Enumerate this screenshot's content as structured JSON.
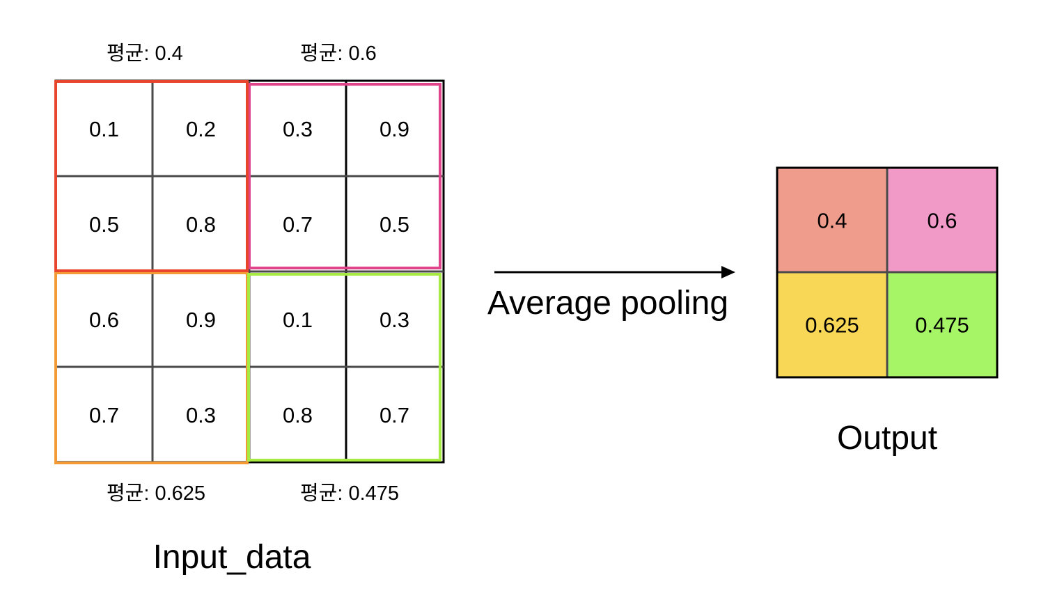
{
  "input": {
    "title": "Input_data",
    "grid": [
      [
        "0.1",
        "0.2",
        "0.3",
        "0.9"
      ],
      [
        "0.5",
        "0.8",
        "0.7",
        "0.5"
      ],
      [
        "0.6",
        "0.9",
        "0.1",
        "0.3"
      ],
      [
        "0.7",
        "0.3",
        "0.8",
        "0.7"
      ]
    ],
    "averages": {
      "top_left": "평균: 0.4",
      "top_right": "평균: 0.6",
      "bottom_left": "평균: 0.625",
      "bottom_right": "평균: 0.475"
    },
    "window_colors": {
      "top_left": "#e8452c",
      "top_right": "#e0458c",
      "bottom_left": "#f39a35",
      "bottom_right": "#a7ea41"
    }
  },
  "operation": {
    "label": "Average pooling"
  },
  "output": {
    "title": "Output",
    "grid": [
      [
        "0.4",
        "0.6"
      ],
      [
        "0.625",
        "0.475"
      ]
    ],
    "cell_colors": [
      [
        "#f09c8c",
        "#f19ac8"
      ],
      [
        "#f8d757",
        "#a6f567"
      ]
    ]
  }
}
